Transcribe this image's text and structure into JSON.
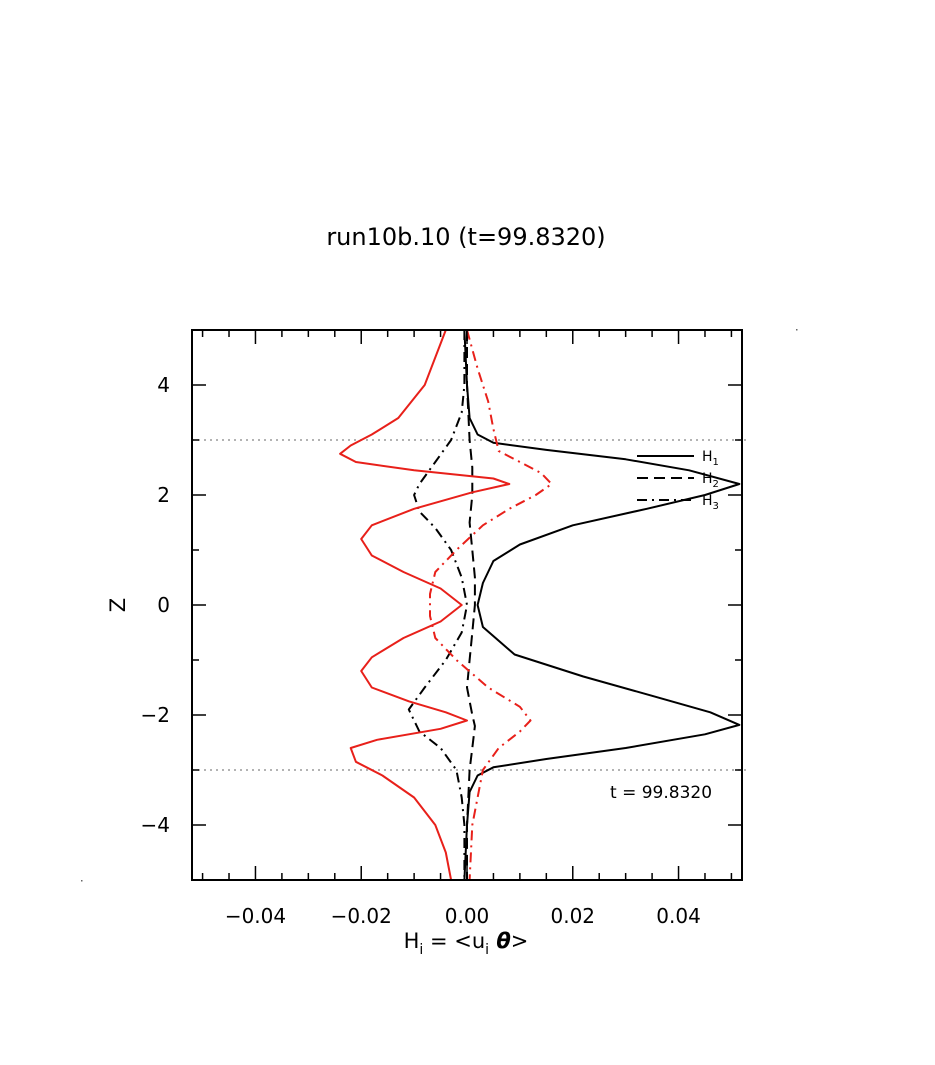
{
  "chart_data": {
    "type": "line",
    "title": "run10b.10 (t=99.8320)",
    "xlabel": {
      "main": "H",
      "sub": "i",
      "eq": " = <u",
      "sub2": "i",
      "theta": " θ",
      "close": ">"
    },
    "ylabel": "Z",
    "xlim": [
      -0.052,
      0.052
    ],
    "ylim": [
      -5,
      5
    ],
    "xticks": [
      -0.04,
      -0.02,
      0.0,
      0.02,
      0.04
    ],
    "xtick_labels": [
      "−0.04",
      "−0.02",
      "0.00",
      "0.02",
      "0.04"
    ],
    "yticks": [
      -4,
      -2,
      0,
      2,
      4
    ],
    "ytick_labels": [
      "−4",
      "−2",
      "0",
      "2",
      "4"
    ],
    "reference_lines_z": [
      3,
      -3
    ],
    "annotation": "t  =  99.8320",
    "legend": {
      "placement": "top-right",
      "entries": [
        {
          "main": "H",
          "sub": "1",
          "style": "solid"
        },
        {
          "main": "H",
          "sub": "2",
          "style": "dashed"
        },
        {
          "main": "H",
          "sub": "3",
          "style": "dashdot"
        }
      ]
    },
    "colors": {
      "black": "#000000",
      "red": "#e8201a",
      "ref": "#9a9a9a"
    },
    "series": [
      {
        "color": "black",
        "style": "solid",
        "points": [
          [
            -0.0005,
            5.0
          ],
          [
            0.0,
            4.0
          ],
          [
            0.0005,
            3.4
          ],
          [
            0.002,
            3.1
          ],
          [
            0.005,
            2.95
          ],
          [
            0.015,
            2.82
          ],
          [
            0.03,
            2.65
          ],
          [
            0.042,
            2.45
          ],
          [
            0.0515,
            2.2
          ],
          [
            0.045,
            2.0
          ],
          [
            0.034,
            1.75
          ],
          [
            0.02,
            1.45
          ],
          [
            0.01,
            1.1
          ],
          [
            0.005,
            0.8
          ],
          [
            0.003,
            0.4
          ],
          [
            0.002,
            0.0
          ],
          [
            0.003,
            -0.4
          ],
          [
            0.009,
            -0.9
          ],
          [
            0.022,
            -1.3
          ],
          [
            0.035,
            -1.65
          ],
          [
            0.046,
            -1.95
          ],
          [
            0.0515,
            -2.18
          ],
          [
            0.045,
            -2.35
          ],
          [
            0.03,
            -2.6
          ],
          [
            0.015,
            -2.8
          ],
          [
            0.005,
            -2.95
          ],
          [
            0.002,
            -3.1
          ],
          [
            0.0005,
            -3.4
          ],
          [
            0.0,
            -4.0
          ],
          [
            -0.0005,
            -5.0
          ]
        ]
      },
      {
        "color": "black",
        "style": "dashed",
        "points": [
          [
            0.0,
            5.0
          ],
          [
            0.0,
            4.0
          ],
          [
            0.0005,
            3.0
          ],
          [
            0.001,
            2.5
          ],
          [
            0.001,
            2.0
          ],
          [
            0.0005,
            1.5
          ],
          [
            0.001,
            1.0
          ],
          [
            0.0015,
            0.5
          ],
          [
            0.0015,
            0.0
          ],
          [
            0.001,
            -0.5
          ],
          [
            0.0005,
            -1.0
          ],
          [
            0.0,
            -1.5
          ],
          [
            0.001,
            -2.0
          ],
          [
            0.0015,
            -2.2
          ],
          [
            0.001,
            -2.6
          ],
          [
            0.0005,
            -3.0
          ],
          [
            0.0,
            -4.0
          ],
          [
            0.0,
            -5.0
          ]
        ]
      },
      {
        "color": "black",
        "style": "dashdot",
        "points": [
          [
            -0.0005,
            5.0
          ],
          [
            -0.0005,
            4.0
          ],
          [
            -0.001,
            3.5
          ],
          [
            -0.003,
            3.0
          ],
          [
            -0.006,
            2.6
          ],
          [
            -0.009,
            2.2
          ],
          [
            -0.01,
            2.0
          ],
          [
            -0.009,
            1.7
          ],
          [
            -0.006,
            1.4
          ],
          [
            -0.003,
            1.0
          ],
          [
            -0.001,
            0.5
          ],
          [
            0.0,
            0.0
          ],
          [
            -0.001,
            -0.5
          ],
          [
            -0.004,
            -1.0
          ],
          [
            -0.008,
            -1.5
          ],
          [
            -0.011,
            -1.9
          ],
          [
            -0.009,
            -2.3
          ],
          [
            -0.005,
            -2.6
          ],
          [
            -0.002,
            -3.0
          ],
          [
            -0.001,
            -3.5
          ],
          [
            -0.0005,
            -4.0
          ],
          [
            -0.0005,
            -5.0
          ]
        ]
      },
      {
        "color": "red",
        "style": "solid",
        "points": [
          [
            -0.004,
            5.0
          ],
          [
            -0.008,
            4.0
          ],
          [
            -0.013,
            3.4
          ],
          [
            -0.018,
            3.1
          ],
          [
            -0.022,
            2.9
          ],
          [
            -0.024,
            2.75
          ],
          [
            -0.021,
            2.6
          ],
          [
            -0.01,
            2.45
          ],
          [
            0.005,
            2.3
          ],
          [
            0.008,
            2.2
          ],
          [
            0.001,
            2.05
          ],
          [
            -0.01,
            1.75
          ],
          [
            -0.018,
            1.45
          ],
          [
            -0.02,
            1.2
          ],
          [
            -0.018,
            0.9
          ],
          [
            -0.012,
            0.6
          ],
          [
            -0.005,
            0.3
          ],
          [
            -0.001,
            0.0
          ],
          [
            -0.005,
            -0.3
          ],
          [
            -0.012,
            -0.6
          ],
          [
            -0.018,
            -0.95
          ],
          [
            -0.02,
            -1.2
          ],
          [
            -0.018,
            -1.5
          ],
          [
            -0.011,
            -1.75
          ],
          [
            -0.004,
            -1.95
          ],
          [
            0.0,
            -2.1
          ],
          [
            -0.005,
            -2.25
          ],
          [
            -0.017,
            -2.45
          ],
          [
            -0.022,
            -2.6
          ],
          [
            -0.021,
            -2.85
          ],
          [
            -0.016,
            -3.1
          ],
          [
            -0.01,
            -3.5
          ],
          [
            -0.006,
            -4.0
          ],
          [
            -0.004,
            -4.5
          ],
          [
            -0.003,
            -5.0
          ]
        ]
      },
      {
        "color": "red",
        "style": "dashdot",
        "points": [
          [
            0.0,
            5.0
          ],
          [
            0.002,
            4.3
          ],
          [
            0.004,
            3.7
          ],
          [
            0.005,
            3.2
          ],
          [
            0.006,
            2.8
          ],
          [
            0.01,
            2.6
          ],
          [
            0.014,
            2.4
          ],
          [
            0.016,
            2.2
          ],
          [
            0.013,
            2.0
          ],
          [
            0.008,
            1.75
          ],
          [
            0.003,
            1.45
          ],
          [
            -0.002,
            1.0
          ],
          [
            -0.006,
            0.6
          ],
          [
            -0.007,
            0.2
          ],
          [
            -0.007,
            -0.2
          ],
          [
            -0.006,
            -0.6
          ],
          [
            -0.002,
            -1.0
          ],
          [
            0.004,
            -1.5
          ],
          [
            0.01,
            -1.85
          ],
          [
            0.012,
            -2.1
          ],
          [
            0.01,
            -2.3
          ],
          [
            0.006,
            -2.6
          ],
          [
            0.003,
            -3.0
          ],
          [
            0.002,
            -3.5
          ],
          [
            0.001,
            -4.0
          ],
          [
            0.0005,
            -5.0
          ]
        ]
      }
    ]
  }
}
